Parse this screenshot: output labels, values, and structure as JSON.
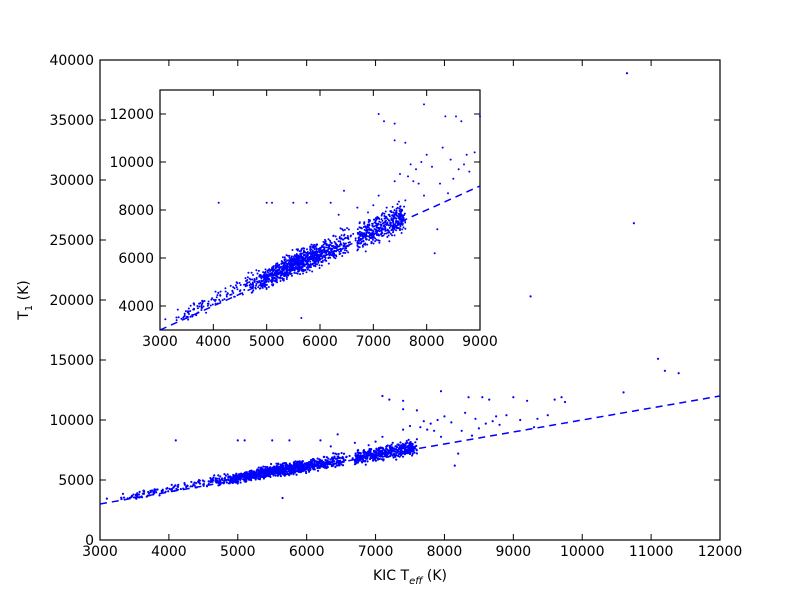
{
  "chart_data": [
    {
      "type": "scatter",
      "role": "main",
      "title": "",
      "xlabel_parts": {
        "main": "KIC T",
        "sub": "eff",
        "unit": " (K)"
      },
      "ylabel_parts": {
        "main": "T",
        "sub": "1",
        "unit": " (K)"
      },
      "xlim": [
        3000,
        12000
      ],
      "ylim": [
        0,
        40000
      ],
      "xticks": [
        3000,
        4000,
        5000,
        6000,
        7000,
        8000,
        9000,
        10000,
        11000,
        12000
      ],
      "yticks": [
        0,
        5000,
        10000,
        15000,
        20000,
        25000,
        30000,
        35000,
        40000
      ],
      "grid": false,
      "point_color": "#0000ff",
      "line_color": "#0000ff",
      "reference_line": {
        "style": "dashed",
        "points": [
          [
            3000,
            3000
          ],
          [
            12000,
            12000
          ]
        ]
      },
      "dense_trend": [
        [
          3300,
          3500
        ],
        [
          4000,
          4200
        ],
        [
          4500,
          4800
        ],
        [
          5000,
          5150
        ],
        [
          5500,
          5750
        ],
        [
          6000,
          6150
        ],
        [
          6500,
          6700
        ],
        [
          7000,
          7100
        ],
        [
          7500,
          7700
        ]
      ],
      "outliers": [
        [
          3100,
          3450
        ],
        [
          3700,
          4000
        ],
        [
          4100,
          8300
        ],
        [
          5000,
          8300
        ],
        [
          5100,
          8300
        ],
        [
          5500,
          8300
        ],
        [
          5750,
          8300
        ],
        [
          6200,
          8300
        ],
        [
          6450,
          8800
        ],
        [
          7100,
          12000
        ],
        [
          7200,
          11700
        ],
        [
          7400,
          10900
        ],
        [
          7600,
          10800
        ],
        [
          7650,
          9400
        ],
        [
          7800,
          9700
        ],
        [
          7850,
          9100
        ],
        [
          7950,
          8600
        ],
        [
          7950,
          12400
        ],
        [
          8000,
          10300
        ],
        [
          8100,
          9800
        ],
        [
          8150,
          6200
        ],
        [
          8200,
          7200
        ],
        [
          8250,
          9100
        ],
        [
          8350,
          11900
        ],
        [
          8400,
          8700
        ],
        [
          8450,
          10100
        ],
        [
          8500,
          9300
        ],
        [
          8550,
          11900
        ],
        [
          8600,
          9700
        ],
        [
          8700,
          9900
        ],
        [
          8750,
          10300
        ],
        [
          8800,
          9600
        ],
        [
          8900,
          10400
        ],
        [
          9000,
          11900
        ],
        [
          9100,
          10000
        ],
        [
          9200,
          11600
        ],
        [
          9300,
          9400
        ],
        [
          9350,
          10100
        ],
        [
          9500,
          10400
        ],
        [
          9600,
          11700
        ],
        [
          9700,
          11900
        ],
        [
          9750,
          11500
        ],
        [
          5650,
          3500
        ],
        [
          7300,
          6700
        ],
        [
          7400,
          11600
        ],
        [
          8650,
          11700
        ],
        [
          6350,
          7800
        ],
        [
          6700,
          8100
        ],
        [
          6900,
          7900
        ],
        [
          7000,
          8200
        ],
        [
          7100,
          8600
        ],
        [
          7250,
          8100
        ],
        [
          7500,
          9500
        ],
        [
          7700,
          9900
        ],
        [
          7300,
          7800
        ],
        [
          7600,
          8400
        ],
        [
          7750,
          9200
        ],
        [
          7400,
          9200
        ],
        [
          7900,
          10000
        ],
        [
          8300,
          10600
        ],
        [
          9250,
          20300
        ],
        [
          10600,
          12300
        ],
        [
          10650,
          38900
        ],
        [
          10750,
          26400
        ],
        [
          11100,
          15100
        ],
        [
          11200,
          14100
        ],
        [
          11400,
          13900
        ]
      ]
    },
    {
      "type": "scatter",
      "role": "inset",
      "title": "",
      "xlim": [
        3000,
        9000
      ],
      "ylim": [
        3000,
        13000
      ],
      "xticks": [
        3000,
        4000,
        5000,
        6000,
        7000,
        8000,
        9000
      ],
      "yticks": [
        4000,
        6000,
        8000,
        10000,
        12000
      ],
      "grid": false,
      "point_color": "#0000ff",
      "line_color": "#0000ff",
      "reference_line": {
        "style": "dashed",
        "points": [
          [
            3000,
            3000
          ],
          [
            9000,
            9000
          ]
        ]
      }
    }
  ]
}
